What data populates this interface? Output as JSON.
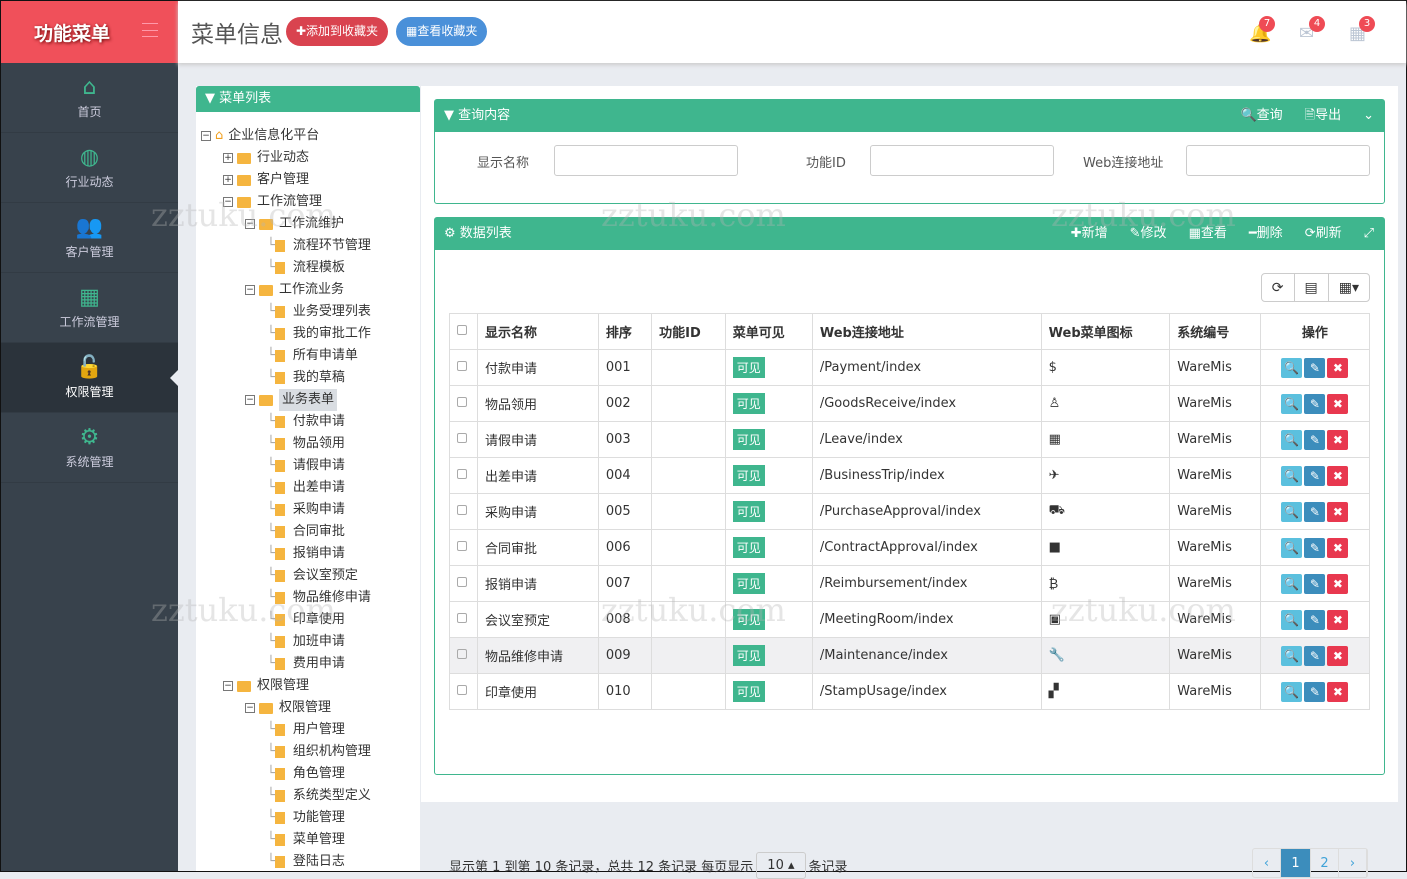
{
  "app": {
    "logo": "功能菜单",
    "page_title": "菜单信息",
    "add_fav": "✚添加到收藏夹",
    "view_fav": "▦查看收藏夹"
  },
  "notifications": [
    {
      "icon": "bell-icon",
      "count": "7"
    },
    {
      "icon": "envelope-icon",
      "count": "4"
    },
    {
      "icon": "calendar-icon",
      "count": "3"
    }
  ],
  "sidebar": {
    "items": [
      {
        "label": "首页",
        "icon": "⌂"
      },
      {
        "label": "行业动态",
        "icon": "◍"
      },
      {
        "label": "客户管理",
        "icon": "👥"
      },
      {
        "label": "工作流管理",
        "icon": "▦"
      },
      {
        "label": "权限管理",
        "icon": "🔓",
        "active": true
      },
      {
        "label": "系统管理",
        "icon": "⚙"
      }
    ]
  },
  "tree": {
    "title": "▼ 菜单列表",
    "nodes": [
      {
        "l": 0,
        "t": "root",
        "label": "企业信息化平台"
      },
      {
        "l": 1,
        "t": "closed",
        "label": "行业动态"
      },
      {
        "l": 1,
        "t": "closed",
        "label": "客户管理"
      },
      {
        "l": 1,
        "t": "open",
        "label": "工作流管理"
      },
      {
        "l": 2,
        "t": "open",
        "label": "工作流维护"
      },
      {
        "l": 3,
        "t": "leaf",
        "label": "流程环节管理"
      },
      {
        "l": 3,
        "t": "leaf",
        "label": "流程模板"
      },
      {
        "l": 2,
        "t": "open",
        "label": "工作流业务"
      },
      {
        "l": 3,
        "t": "leaf",
        "label": "业务受理列表"
      },
      {
        "l": 3,
        "t": "leaf",
        "label": "我的审批工作"
      },
      {
        "l": 3,
        "t": "leaf",
        "label": "所有申请单"
      },
      {
        "l": 3,
        "t": "leaf",
        "label": "我的草稿"
      },
      {
        "l": 2,
        "t": "open",
        "label": "业务表单",
        "selected": true
      },
      {
        "l": 3,
        "t": "leaf",
        "label": "付款申请"
      },
      {
        "l": 3,
        "t": "leaf",
        "label": "物品领用"
      },
      {
        "l": 3,
        "t": "leaf",
        "label": "请假申请"
      },
      {
        "l": 3,
        "t": "leaf",
        "label": "出差申请"
      },
      {
        "l": 3,
        "t": "leaf",
        "label": "采购申请"
      },
      {
        "l": 3,
        "t": "leaf",
        "label": "合同审批"
      },
      {
        "l": 3,
        "t": "leaf",
        "label": "报销申请"
      },
      {
        "l": 3,
        "t": "leaf",
        "label": "会议室预定"
      },
      {
        "l": 3,
        "t": "leaf",
        "label": "物品维修申请"
      },
      {
        "l": 3,
        "t": "leaf",
        "label": "印章使用"
      },
      {
        "l": 3,
        "t": "leaf",
        "label": "加班申请"
      },
      {
        "l": 3,
        "t": "leaf",
        "label": "费用申请"
      },
      {
        "l": 1,
        "t": "open",
        "label": "权限管理"
      },
      {
        "l": 2,
        "t": "open",
        "label": "权限管理"
      },
      {
        "l": 3,
        "t": "leaf",
        "label": "用户管理"
      },
      {
        "l": 3,
        "t": "leaf",
        "label": "组织机构管理"
      },
      {
        "l": 3,
        "t": "leaf",
        "label": "角色管理"
      },
      {
        "l": 3,
        "t": "leaf",
        "label": "系统类型定义"
      },
      {
        "l": 3,
        "t": "leaf",
        "label": "功能管理"
      },
      {
        "l": 3,
        "t": "leaf",
        "label": "菜单管理"
      },
      {
        "l": 3,
        "t": "leaf",
        "label": "登陆日志"
      }
    ]
  },
  "query": {
    "title": "▼ 查询内容",
    "search": "🔍查询",
    "export": "🗎导出",
    "fields": [
      {
        "label": "显示名称",
        "value": ""
      },
      {
        "label": "功能ID",
        "value": ""
      },
      {
        "label": "Web连接地址",
        "value": ""
      }
    ]
  },
  "datalist": {
    "title": "⚙ 数据列表",
    "actions": [
      "✚新增",
      "✎修改",
      "▦查看",
      "━删除",
      "⟳刷新",
      "⤢"
    ],
    "columns": [
      "显示名称",
      "排序",
      "功能ID",
      "菜单可见",
      "Web连接地址",
      "Web菜单图标",
      "系统编号",
      "操作"
    ],
    "rows": [
      [
        "付款申请",
        "001",
        "",
        "可见",
        "/Payment/index",
        "$",
        "WareMis"
      ],
      [
        "物品领用",
        "002",
        "",
        "可见",
        "/GoodsReceive/index",
        "♙",
        "WareMis"
      ],
      [
        "请假申请",
        "003",
        "",
        "可见",
        "/Leave/index",
        "▦",
        "WareMis"
      ],
      [
        "出差申请",
        "004",
        "",
        "可见",
        "/BusinessTrip/index",
        "✈",
        "WareMis"
      ],
      [
        "采购申请",
        "005",
        "",
        "可见",
        "/PurchaseApproval/index",
        "⛟",
        "WareMis"
      ],
      [
        "合同审批",
        "006",
        "",
        "可见",
        "/ContractApproval/index",
        "■",
        "WareMis"
      ],
      [
        "报销申请",
        "007",
        "",
        "可见",
        "/Reimbursement/index",
        "₿",
        "WareMis"
      ],
      [
        "会议室预定",
        "008",
        "",
        "可见",
        "/MeetingRoom/index",
        "▣",
        "WareMis"
      ],
      [
        "物品维修申请",
        "009",
        "",
        "可见",
        "/Maintenance/index",
        "🔧",
        "WareMis"
      ],
      [
        "印章使用",
        "010",
        "",
        "可见",
        "/StampUsage/index",
        "▞",
        "WareMis"
      ]
    ],
    "footer_pre": "显示第 1 到第 10 条记录，总共 12 条记录 每页显示",
    "page_size": "10 ▴",
    "footer_post": "条记录",
    "pages": [
      "‹",
      "1",
      "2",
      "›"
    ],
    "current_page": "1"
  },
  "colors": {
    "red": "#f0505a",
    "green": "#3fb68e",
    "sidebar": "#38424c"
  }
}
